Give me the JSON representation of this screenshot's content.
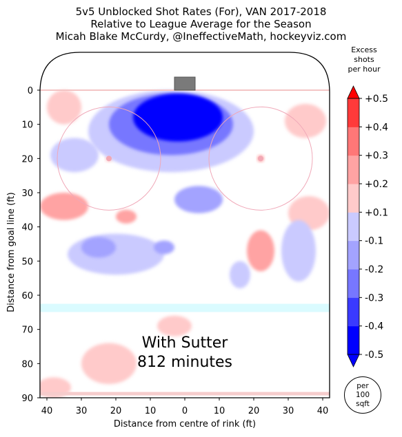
{
  "header": {
    "line1": "5v5 Unblocked Shot Rates (For), VAN 2017-2018",
    "line2": "Relative to League Average for the Season",
    "line3": "Micah Blake McCurdy, @IneffectiveMath, hockeyviz.com"
  },
  "chart_data": {
    "type": "heatmap",
    "xlabel": "Distance from centre of rink (ft)",
    "ylabel": "Distance from goal line (ft)",
    "xlim": [
      -42,
      42
    ],
    "ylim": [
      0,
      90
    ],
    "xticks": [
      "40",
      "30",
      "20",
      "10",
      "0",
      "10",
      "20",
      "30",
      "40"
    ],
    "xtick_values": [
      -40,
      -30,
      -20,
      -10,
      0,
      10,
      20,
      30,
      40
    ],
    "yticks": [
      "0",
      "10",
      "20",
      "30",
      "40",
      "50",
      "60",
      "70",
      "80",
      "90"
    ],
    "ytick_values": [
      0,
      10,
      20,
      30,
      40,
      50,
      60,
      70,
      80,
      90
    ],
    "annotation_line1": "With Sutter",
    "annotation_line2": "812 minutes",
    "colorbar": {
      "title_lines": [
        "Excess",
        "shots",
        "per hour"
      ],
      "tick_labels": [
        "+0.5",
        "+0.4",
        "+0.3",
        "+0.2",
        "+0.1",
        "-0.1",
        "-0.2",
        "-0.3",
        "-0.4",
        "-0.5"
      ],
      "levels": [
        -0.5,
        -0.4,
        -0.3,
        -0.2,
        -0.1,
        0.1,
        0.2,
        0.3,
        0.4,
        0.5
      ],
      "colors_low_to_high": [
        "#0000ff",
        "#3a3aff",
        "#7777ff",
        "#a3a3ff",
        "#cacaff",
        "#ffffff",
        "#ffcaca",
        "#ffa3a3",
        "#ff7777",
        "#ff3a3a",
        "#ff0000"
      ],
      "unit_badge": [
        "per",
        "100",
        "sqft"
      ]
    },
    "blobs": [
      {
        "x": -2,
        "y": 8,
        "rx": 13,
        "ry": 7,
        "value": -0.5
      },
      {
        "x": -4,
        "y": 10,
        "rx": 18,
        "ry": 9,
        "value": -0.35
      },
      {
        "x": -4,
        "y": 12,
        "rx": 24,
        "ry": 12,
        "value": -0.2
      },
      {
        "x": 0,
        "y": 18,
        "rx": 34,
        "ry": 14,
        "value": -0.1
      },
      {
        "x": -32,
        "y": 19,
        "rx": 7,
        "ry": 5,
        "value": -0.2
      },
      {
        "x": 4,
        "y": 32,
        "rx": 7,
        "ry": 4,
        "value": -0.3
      },
      {
        "x": 0,
        "y": 45,
        "rx": 34,
        "ry": 12,
        "value": -0.1
      },
      {
        "x": -25,
        "y": 46,
        "rx": 5,
        "ry": 3,
        "value": -0.3
      },
      {
        "x": -6,
        "y": 46,
        "rx": 3,
        "ry": 2,
        "value": -0.3
      },
      {
        "x": -20,
        "y": 48,
        "rx": 14,
        "ry": 6,
        "value": -0.2
      },
      {
        "x": 33,
        "y": 47,
        "rx": 5,
        "ry": 9,
        "value": -0.2
      },
      {
        "x": 16,
        "y": 54,
        "rx": 3,
        "ry": 4,
        "value": -0.2
      },
      {
        "x": 12,
        "y": 52,
        "rx": 8,
        "ry": 6,
        "value": -0.1
      },
      {
        "x": -35,
        "y": 34,
        "rx": 7,
        "ry": 4,
        "value": 0.2
      },
      {
        "x": -17,
        "y": 37,
        "rx": 3,
        "ry": 2,
        "value": 0.2
      },
      {
        "x": 22,
        "y": 47,
        "rx": 4,
        "ry": 6,
        "value": 0.2
      },
      {
        "x": -35,
        "y": 5,
        "rx": 5,
        "ry": 5,
        "value": 0.1
      },
      {
        "x": 35,
        "y": 9,
        "rx": 6,
        "ry": 5,
        "value": 0.1
      },
      {
        "x": -23,
        "y": 14,
        "rx": 2,
        "ry": 3,
        "value": 0.1
      },
      {
        "x": 36,
        "y": 36,
        "rx": 6,
        "ry": 5,
        "value": 0.1
      },
      {
        "x": -3,
        "y": 69,
        "rx": 5,
        "ry": 3,
        "value": 0.1
      },
      {
        "x": -22,
        "y": 80,
        "rx": 8,
        "ry": 6,
        "value": 0.1
      },
      {
        "x": -38,
        "y": 87,
        "rx": 5,
        "ry": 3,
        "value": 0.1
      },
      {
        "x": -22,
        "y": 20,
        "rx": 1,
        "ry": 1,
        "value": 0.1
      },
      {
        "x": 22,
        "y": 20,
        "rx": 1,
        "ry": 1,
        "value": 0.2
      }
    ]
  }
}
